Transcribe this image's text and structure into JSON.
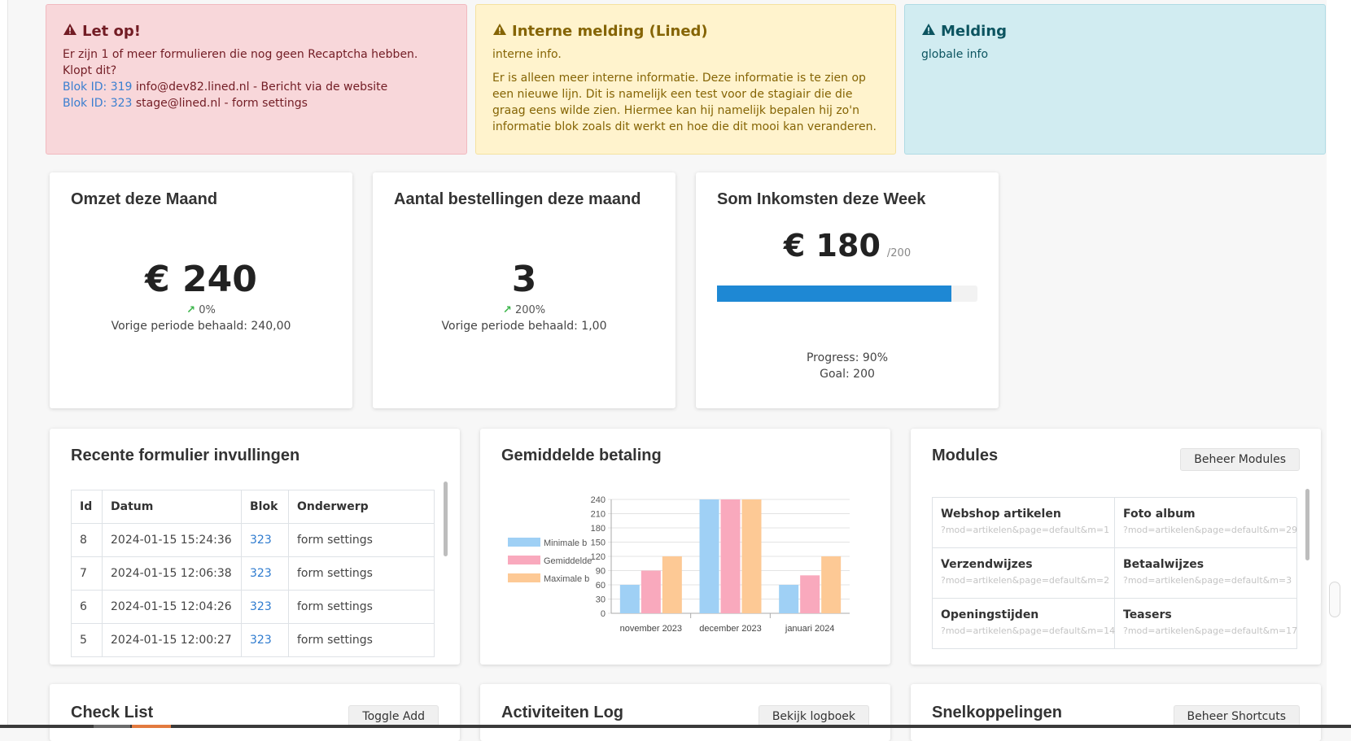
{
  "alerts": {
    "danger": {
      "title": "Let op!",
      "intro": "Er zijn 1 of meer formulieren die nog geen Recaptcha hebben. Klopt dit?",
      "items": [
        {
          "link": "Blok ID: 319",
          "text": " info@dev82.lined.nl - Bericht via de website"
        },
        {
          "link": "Blok ID: 323",
          "text": " stage@lined.nl - form settings"
        }
      ]
    },
    "warning": {
      "title": "Interne melding (Lined)",
      "line1": "interne info.",
      "line2": "Er is alleen meer interne informatie. Deze informatie is te zien op een nieuwe lijn. Dit is namelijk een test voor de stagiair die die graag eens wilde zien. Hiermee kan hij namelijk bepalen hij zo'n informatie blok zoals dit werkt en hoe die dit mooi kan veranderen."
    },
    "info": {
      "title": "Melding",
      "line1": "globale info"
    }
  },
  "stats": {
    "omzet": {
      "title": "Omzet deze Maand",
      "value": "€ 240",
      "trend": "0%",
      "previous": "Vorige periode behaald: 240,00"
    },
    "bestellingen": {
      "title": "Aantal bestellingen deze maand",
      "value": "3",
      "trend": "200%",
      "previous": "Vorige periode behaald: 1,00"
    },
    "inkomsten": {
      "title": "Som Inkomsten deze Week",
      "value": "€ 180",
      "goal_suffix": "/200",
      "progress": 0.9,
      "progress_label": "Progress: 90%",
      "goal_label": "Goal: 200"
    }
  },
  "forms": {
    "title": "Recente formulier invullingen",
    "columns": [
      "Id",
      "Datum",
      "Blok",
      "Onderwerp"
    ],
    "rows": [
      {
        "id": "8",
        "datum": "2024-01-15 15:24:36",
        "blok": "323",
        "onderwerp": "form settings"
      },
      {
        "id": "7",
        "datum": "2024-01-15 12:06:38",
        "blok": "323",
        "onderwerp": "form settings"
      },
      {
        "id": "6",
        "datum": "2024-01-15 12:04:26",
        "blok": "323",
        "onderwerp": "form settings"
      },
      {
        "id": "5",
        "datum": "2024-01-15 12:00:27",
        "blok": "323",
        "onderwerp": "form settings"
      }
    ]
  },
  "chart": {
    "title": "Gemiddelde betaling"
  },
  "chart_data": {
    "type": "bar",
    "categories": [
      "november 2023",
      "december 2023",
      "januari 2024"
    ],
    "series": [
      {
        "name": "Minimale b",
        "color": "#9fd0f5",
        "values": [
          60,
          240,
          60
        ]
      },
      {
        "name": "Gemiddelde",
        "color": "#f9a9bd",
        "values": [
          90,
          240,
          80
        ]
      },
      {
        "name": "Maximale b",
        "color": "#fdc995",
        "values": [
          120,
          240,
          120
        ]
      }
    ],
    "ylim": [
      0,
      240
    ],
    "yticks": [
      0,
      30,
      60,
      90,
      120,
      150,
      180,
      210,
      240
    ],
    "grid": true,
    "legend": "left"
  },
  "modules": {
    "title": "Modules",
    "button": "Beheer Modules",
    "items": [
      {
        "name": "Webshop artikelen",
        "url": "?mod=artikelen&page=default&m=1"
      },
      {
        "name": "Foto album",
        "url": "?mod=artikelen&page=default&m=29"
      },
      {
        "name": "Verzendwijzes",
        "url": "?mod=artikelen&page=default&m=2"
      },
      {
        "name": "Betaalwijzes",
        "url": "?mod=artikelen&page=default&m=3"
      },
      {
        "name": "Openingstijden",
        "url": "?mod=artikelen&page=default&m=14"
      },
      {
        "name": "Teasers",
        "url": "?mod=artikelen&page=default&m=17"
      }
    ]
  },
  "checklist": {
    "title": "Check List",
    "button": "Toggle Add"
  },
  "activity": {
    "title": "Activiteiten Log",
    "button": "Bekijk logboek"
  },
  "shortcuts": {
    "title": "Snelkoppelingen",
    "button": "Beheer Shortcuts"
  }
}
